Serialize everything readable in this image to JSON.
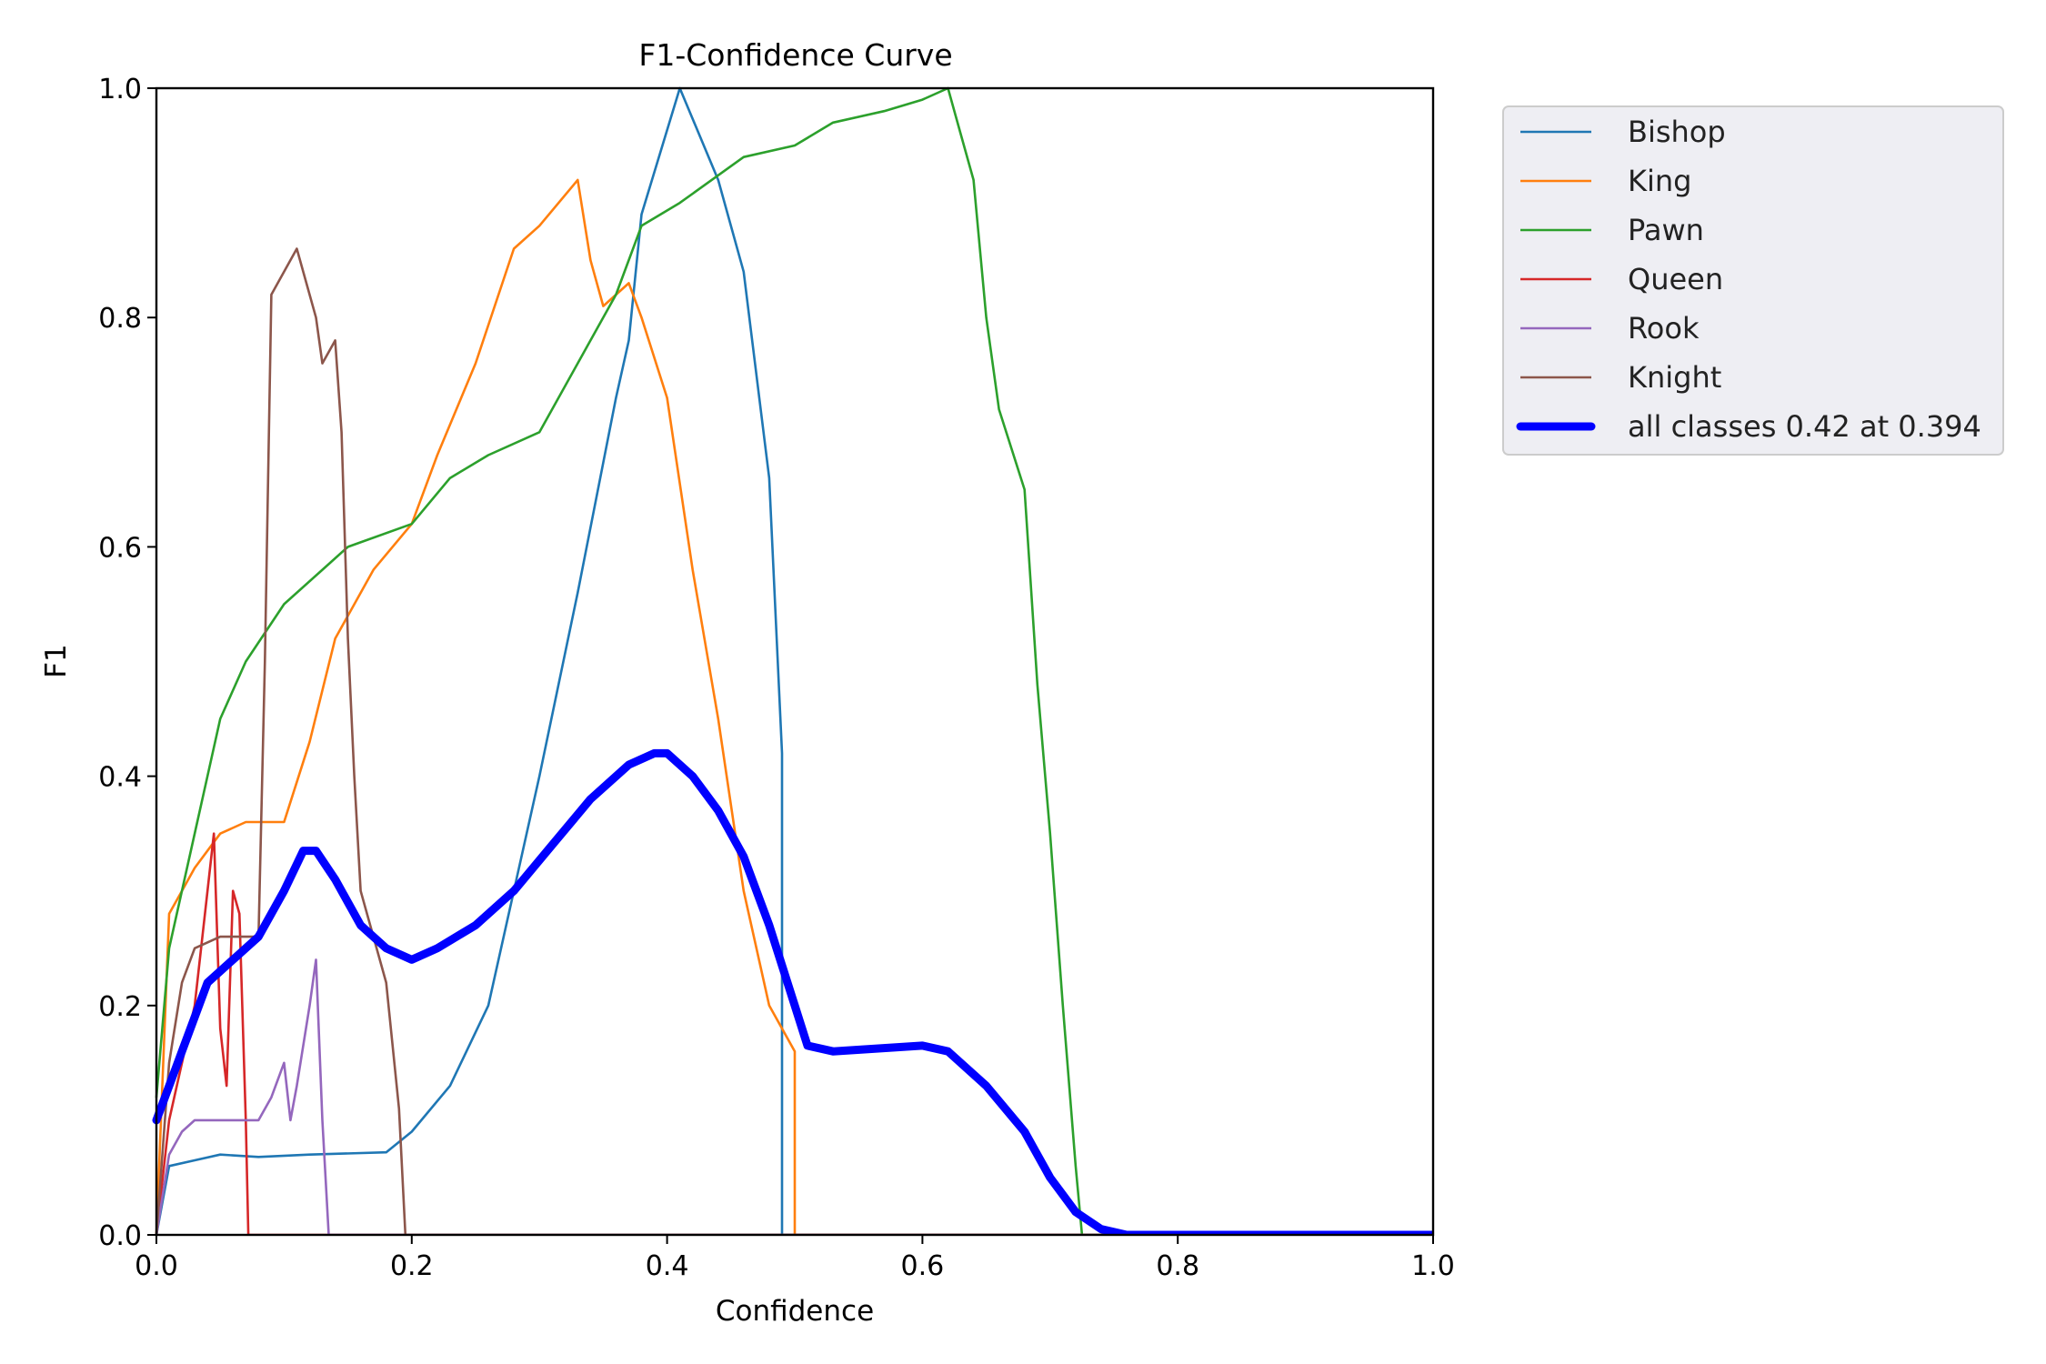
{
  "chart_data": {
    "type": "line",
    "title": "F1-Confidence Curve",
    "xlabel": "Confidence",
    "ylabel": "F1",
    "xlim": [
      0.0,
      1.0
    ],
    "ylim": [
      0.0,
      1.0
    ],
    "xticks": [
      "0.0",
      "0.2",
      "0.4",
      "0.6",
      "0.8",
      "1.0"
    ],
    "yticks": [
      "0.0",
      "0.2",
      "0.4",
      "0.6",
      "0.8",
      "1.0"
    ],
    "grid": false,
    "legend_position": "outside-top-right",
    "series": [
      {
        "name": "Bishop",
        "color": "#1f77b4",
        "x": [
          0.0,
          0.01,
          0.03,
          0.05,
          0.08,
          0.12,
          0.18,
          0.2,
          0.23,
          0.26,
          0.3,
          0.33,
          0.36,
          0.37,
          0.38,
          0.41,
          0.44,
          0.46,
          0.48,
          0.49,
          0.49,
          0.5,
          1.0
        ],
        "y": [
          0.0,
          0.06,
          0.065,
          0.07,
          0.068,
          0.07,
          0.072,
          0.09,
          0.13,
          0.2,
          0.4,
          0.56,
          0.73,
          0.78,
          0.89,
          1.0,
          0.92,
          0.84,
          0.66,
          0.42,
          0.0,
          0.0,
          0.0
        ]
      },
      {
        "name": "King",
        "color": "#ff7f0e",
        "x": [
          0.0,
          0.01,
          0.02,
          0.03,
          0.05,
          0.07,
          0.1,
          0.12,
          0.14,
          0.17,
          0.2,
          0.22,
          0.25,
          0.28,
          0.3,
          0.33,
          0.34,
          0.35,
          0.37,
          0.38,
          0.4,
          0.42,
          0.44,
          0.46,
          0.48,
          0.5,
          0.5,
          1.0
        ],
        "y": [
          0.0,
          0.28,
          0.3,
          0.32,
          0.35,
          0.36,
          0.36,
          0.43,
          0.52,
          0.58,
          0.62,
          0.68,
          0.76,
          0.86,
          0.88,
          0.92,
          0.85,
          0.81,
          0.83,
          0.8,
          0.73,
          0.58,
          0.45,
          0.3,
          0.2,
          0.16,
          0.0,
          0.0
        ]
      },
      {
        "name": "Pawn",
        "color": "#2ca02c",
        "x": [
          0.0,
          0.01,
          0.03,
          0.05,
          0.07,
          0.1,
          0.13,
          0.15,
          0.2,
          0.23,
          0.26,
          0.3,
          0.33,
          0.36,
          0.38,
          0.41,
          0.46,
          0.5,
          0.53,
          0.57,
          0.6,
          0.62,
          0.63,
          0.64,
          0.65,
          0.66,
          0.68,
          0.69,
          0.7,
          0.71,
          0.72,
          0.725,
          1.0
        ],
        "y": [
          0.12,
          0.25,
          0.35,
          0.45,
          0.5,
          0.55,
          0.58,
          0.6,
          0.62,
          0.66,
          0.68,
          0.7,
          0.76,
          0.82,
          0.88,
          0.9,
          0.94,
          0.95,
          0.97,
          0.98,
          0.99,
          1.0,
          0.96,
          0.92,
          0.8,
          0.72,
          0.65,
          0.48,
          0.35,
          0.2,
          0.06,
          0.0,
          0.0
        ]
      },
      {
        "name": "Queen",
        "color": "#d62728",
        "x": [
          0.0,
          0.01,
          0.02,
          0.03,
          0.04,
          0.045,
          0.05,
          0.055,
          0.06,
          0.065,
          0.07,
          0.072,
          1.0
        ],
        "y": [
          0.0,
          0.1,
          0.15,
          0.2,
          0.3,
          0.35,
          0.18,
          0.13,
          0.3,
          0.28,
          0.1,
          0.0,
          0.0
        ]
      },
      {
        "name": "Rook",
        "color": "#9467bd",
        "x": [
          0.0,
          0.01,
          0.02,
          0.03,
          0.06,
          0.08,
          0.09,
          0.1,
          0.105,
          0.11,
          0.12,
          0.125,
          0.13,
          0.135,
          1.0
        ],
        "y": [
          0.0,
          0.07,
          0.09,
          0.1,
          0.1,
          0.1,
          0.12,
          0.15,
          0.1,
          0.13,
          0.2,
          0.24,
          0.1,
          0.0,
          0.0
        ]
      },
      {
        "name": "Knight",
        "color": "#8c564b",
        "x": [
          0.0,
          0.01,
          0.02,
          0.03,
          0.05,
          0.08,
          0.085,
          0.09,
          0.1,
          0.11,
          0.125,
          0.13,
          0.14,
          0.145,
          0.15,
          0.155,
          0.16,
          0.18,
          0.19,
          0.195,
          1.0
        ],
        "y": [
          0.0,
          0.15,
          0.22,
          0.25,
          0.26,
          0.26,
          0.5,
          0.82,
          0.84,
          0.86,
          0.8,
          0.76,
          0.78,
          0.7,
          0.52,
          0.4,
          0.3,
          0.22,
          0.11,
          0.0,
          0.0
        ]
      },
      {
        "name": "all classes 0.42 at 0.394",
        "color": "#0000ff",
        "bold": true,
        "x": [
          0.0,
          0.02,
          0.04,
          0.06,
          0.08,
          0.1,
          0.115,
          0.125,
          0.14,
          0.16,
          0.18,
          0.2,
          0.22,
          0.25,
          0.28,
          0.31,
          0.34,
          0.37,
          0.39,
          0.4,
          0.42,
          0.44,
          0.46,
          0.48,
          0.5,
          0.51,
          0.53,
          0.6,
          0.62,
          0.65,
          0.68,
          0.7,
          0.72,
          0.74,
          0.76,
          1.0
        ],
        "y": [
          0.1,
          0.16,
          0.22,
          0.24,
          0.26,
          0.3,
          0.335,
          0.335,
          0.31,
          0.27,
          0.25,
          0.24,
          0.25,
          0.27,
          0.3,
          0.34,
          0.38,
          0.41,
          0.42,
          0.42,
          0.4,
          0.37,
          0.33,
          0.27,
          0.2,
          0.165,
          0.16,
          0.165,
          0.16,
          0.13,
          0.09,
          0.05,
          0.02,
          0.005,
          0.0,
          0.0
        ]
      }
    ]
  }
}
